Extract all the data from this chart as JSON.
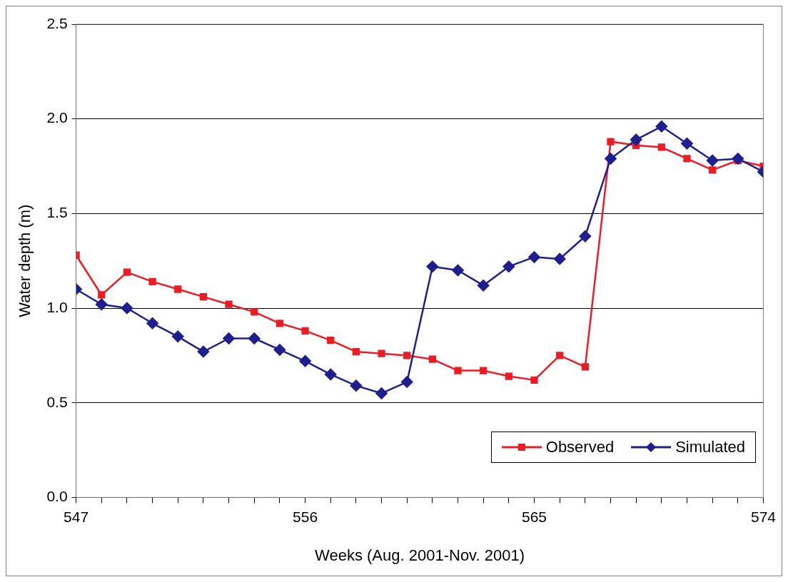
{
  "chart_data": {
    "type": "line",
    "xlabel": "Weeks (Aug. 2001-Nov. 2001)",
    "ylabel": "Water depth (m)",
    "x": [
      547,
      548,
      549,
      550,
      551,
      552,
      553,
      554,
      555,
      556,
      557,
      558,
      559,
      560,
      561,
      562,
      563,
      564,
      565,
      566,
      567,
      568,
      569,
      570,
      571,
      572,
      573,
      574
    ],
    "series": [
      {
        "name": "Observed",
        "color": "#ed1c24",
        "marker": "square",
        "values": [
          1.28,
          1.07,
          1.19,
          1.14,
          1.1,
          1.06,
          1.02,
          0.98,
          0.92,
          0.88,
          0.83,
          0.77,
          0.76,
          0.75,
          0.73,
          0.67,
          0.67,
          0.64,
          0.62,
          0.75,
          0.69,
          1.88,
          1.86,
          1.85,
          1.79,
          1.73,
          1.78,
          1.75
        ]
      },
      {
        "name": "Simulated",
        "color": "#1f1f8f",
        "marker": "diamond",
        "values": [
          1.1,
          1.02,
          1.0,
          0.92,
          0.85,
          0.77,
          0.84,
          0.84,
          0.78,
          0.72,
          0.65,
          0.59,
          0.55,
          0.61,
          1.22,
          1.2,
          1.12,
          1.22,
          1.27,
          1.26,
          1.38,
          1.79,
          1.89,
          1.96,
          1.87,
          1.78,
          1.79,
          1.72
        ]
      }
    ],
    "xlim": [
      547,
      574
    ],
    "xticks": [
      547,
      {
        "value": 548,
        "label": null
      },
      {
        "value": 549,
        "label": null
      },
      {
        "value": 550,
        "label": null
      },
      {
        "value": 551,
        "label": null
      },
      {
        "value": 552,
        "label": null
      },
      {
        "value": 553,
        "label": null
      },
      {
        "value": 554,
        "label": null
      },
      {
        "value": 555,
        "label": null
      },
      556,
      {
        "value": 557,
        "label": null
      },
      {
        "value": 558,
        "label": null
      },
      {
        "value": 559,
        "label": null
      },
      {
        "value": 560,
        "label": null
      },
      {
        "value": 561,
        "label": null
      },
      {
        "value": 562,
        "label": null
      },
      {
        "value": 563,
        "label": null
      },
      {
        "value": 564,
        "label": null
      },
      565,
      {
        "value": 566,
        "label": null
      },
      {
        "value": 567,
        "label": null
      },
      {
        "value": 568,
        "label": null
      },
      {
        "value": 569,
        "label": null
      },
      {
        "value": 570,
        "label": null
      },
      {
        "value": 571,
        "label": null
      },
      {
        "value": 572,
        "label": null
      },
      {
        "value": 573,
        "label": null
      },
      574
    ],
    "ylim": [
      0,
      2.5
    ],
    "yticks": [
      {
        "value": 0,
        "label": "0.0"
      },
      {
        "value": 0.5,
        "label": "0.5"
      },
      {
        "value": 1,
        "label": "1.0"
      },
      {
        "value": 1.5,
        "label": "1.5"
      },
      {
        "value": 2,
        "label": "2.0"
      },
      {
        "value": 2.5,
        "label": "2.5"
      }
    ],
    "grid": "y",
    "legend": "bottom right",
    "line_style": "solid"
  }
}
